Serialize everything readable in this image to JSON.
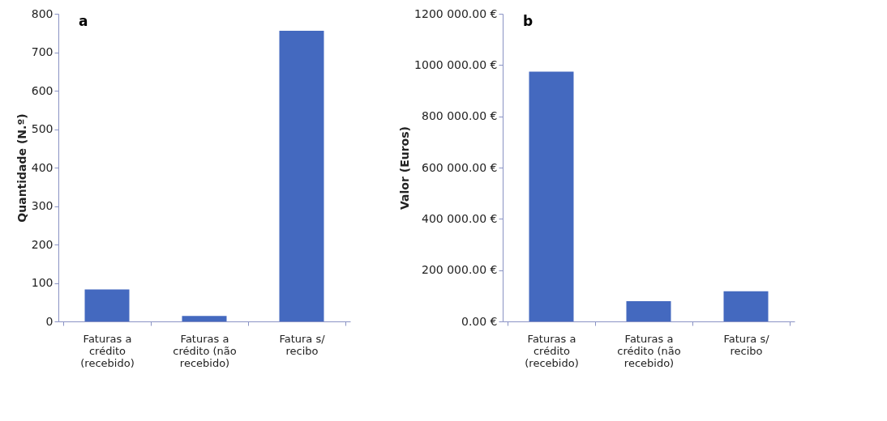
{
  "chart_data": [
    {
      "type": "bar",
      "title": "a",
      "ylabel": "Quantidade (N.º)",
      "categories": [
        "Faturas a crédito (recebido)",
        "Faturas a crédito (não recebido)",
        "Fatura s/ recibo"
      ],
      "values": [
        83,
        14,
        756
      ],
      "color": "#4469bf",
      "ylim": [
        0,
        800
      ],
      "yticks": [
        0,
        100,
        200,
        300,
        400,
        500,
        600,
        700,
        800
      ],
      "grid": false
    },
    {
      "type": "bar",
      "title": "b",
      "ylabel": "Valor (Euros)",
      "categories": [
        "Faturas a crédito (recebido)",
        "Faturas a crédito (não recebido)",
        "Fatura s/ recibo"
      ],
      "values": [
        974000,
        79000,
        118000
      ],
      "color": "#4469bf",
      "ylim": [
        0,
        1200000
      ],
      "yticks": [
        {
          "value": 0,
          "label": "0.00 €"
        },
        {
          "value": 200000,
          "label": "200 000.00 €"
        },
        {
          "value": 400000,
          "label": "400 000.00 €"
        },
        {
          "value": 600000,
          "label": "600 000.00 €"
        },
        {
          "value": 800000,
          "label": "800 000.00 €"
        },
        {
          "value": 1000000,
          "label": "1000 000.00 €"
        },
        {
          "value": 1200000,
          "label": "1200 000.00 €"
        }
      ],
      "grid": false
    }
  ]
}
